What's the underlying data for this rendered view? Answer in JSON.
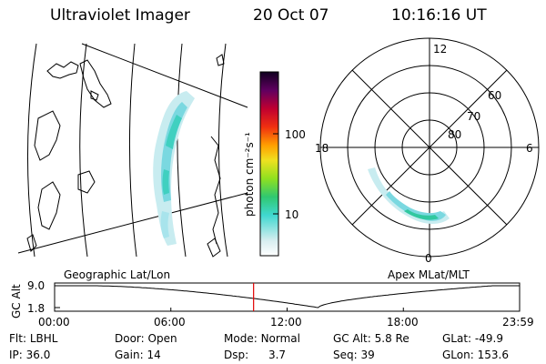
{
  "header": {
    "instrument": "Ultraviolet Imager",
    "date": "20 Oct 07",
    "time": "10:16:16 UT"
  },
  "colorbar": {
    "label": "photon cm⁻²s⁻¹",
    "ticks": [
      "100",
      "10"
    ]
  },
  "polar": {
    "mlt_labels": [
      "12",
      "18",
      "6",
      "0"
    ],
    "lat_labels": [
      "60",
      "70",
      "80"
    ]
  },
  "panels": {
    "left_caption": "Geographic Lat/Lon",
    "right_caption": "Apex MLat/MLT"
  },
  "altitude_plot": {
    "axis_label": "GC Alt",
    "y_ticks": [
      "9.0",
      "1.8"
    ],
    "x_ticks": [
      "00:00",
      "06:00",
      "12:00",
      "18:00",
      "23:59"
    ],
    "current_time_hours": 10.27,
    "line_color": "#000000",
    "marker_color": "#e00000"
  },
  "info": {
    "row1": [
      {
        "label": "Flt:",
        "value": "LBHL"
      },
      {
        "label": "Door:",
        "value": "Open"
      },
      {
        "label": "Mode:",
        "value": "Normal"
      },
      {
        "label": "GC Alt:",
        "value": "5.8 Re"
      },
      {
        "label": "GLat:",
        "value": "-49.9"
      }
    ],
    "row2": [
      {
        "label": "IP:",
        "value": "36.0"
      },
      {
        "label": "Gain:",
        "value": "14"
      },
      {
        "label": "Dsp:",
        "value": "3.7"
      },
      {
        "label": "Seq:",
        "value": "39"
      },
      {
        "label": "GLon:",
        "value": "153.6"
      }
    ]
  }
}
